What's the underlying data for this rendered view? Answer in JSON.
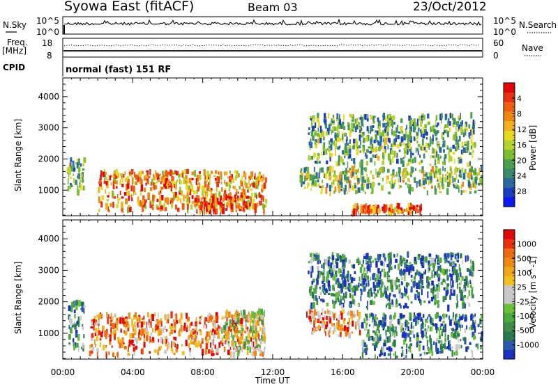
{
  "header": {
    "title": "Syowa East (fitACF)",
    "beam": "Beam 03",
    "date": "23/Oct/2012"
  },
  "noise_panel": {
    "left_label": "N.Sky",
    "right_label": "N.Search",
    "tick_top": "10^5",
    "tick_bottom": "10^0"
  },
  "freq_panel": {
    "left_label_1": "Freq.",
    "left_label_2": "[MHz]",
    "tick_top": "18",
    "tick_bottom": "8",
    "right_label": "Nave",
    "right_tick_top": "60",
    "right_tick_bottom": "0"
  },
  "cpid": {
    "label": "CPID",
    "value": "normal (fast) 151 RF"
  },
  "chart_data": [
    {
      "type": "heatmap",
      "name": "power",
      "ylabel": "Slant Range [km]",
      "xlabel": "Time UT",
      "xlim": [
        "00:00",
        "24:00"
      ],
      "ylim": [
        180,
        4600
      ],
      "x_ticks": [
        "00:00",
        "04:00",
        "08:00",
        "12:00",
        "16:00",
        "20:00",
        "00:00"
      ],
      "y_ticks": [
        1000,
        2000,
        3000,
        4000
      ],
      "colorbar": {
        "label": "Power [dB]",
        "ticks": [
          "4",
          "8",
          "12",
          "16",
          "20",
          "24",
          "28"
        ],
        "colors": [
          "#0a1af0",
          "#1a40c0",
          "#2a6aa0",
          "#3a8a70",
          "#4ca04a",
          "#7bbf30",
          "#b4d230",
          "#e8d820",
          "#f2b020",
          "#f08818",
          "#ec5e10",
          "#e63010",
          "#e00808"
        ]
      },
      "regions": [
        {
          "t": [
            0.2,
            1.2
          ],
          "r": [
            900,
            2000
          ],
          "level": 0.4
        },
        {
          "t": [
            2.0,
            11.6
          ],
          "r": [
            300,
            1600
          ],
          "level": 0.7
        },
        {
          "t": [
            5.6,
            6.2
          ],
          "r": [
            1000,
            1400
          ],
          "level": 0.9
        },
        {
          "t": [
            7.5,
            10.5
          ],
          "r": [
            300,
            800
          ],
          "level": 0.85
        },
        {
          "t": [
            13.5,
            23.9
          ],
          "r": [
            900,
            1700
          ],
          "level": 0.45
        },
        {
          "t": [
            16.5,
            20.5
          ],
          "r": [
            250,
            500
          ],
          "level": 0.8
        },
        {
          "t": [
            14.0,
            23.5
          ],
          "r": [
            1800,
            3400
          ],
          "level": 0.35
        }
      ]
    },
    {
      "type": "heatmap",
      "name": "velocity",
      "ylabel": "Slant Range [km]",
      "xlabel": "Time UT",
      "xlim": [
        "00:00",
        "24:00"
      ],
      "ylim": [
        180,
        4600
      ],
      "x_ticks": [
        "00:00",
        "04:00",
        "08:00",
        "12:00",
        "16:00",
        "20:00",
        "00:00"
      ],
      "y_ticks": [
        1000,
        2000,
        3000,
        4000
      ],
      "colorbar": {
        "label": "Velocity [m s^-1]",
        "ticks": [
          "1000",
          "500",
          "100",
          "25",
          "-25",
          "-100",
          "-500",
          "-1000"
        ],
        "colors": [
          "#1a30c0",
          "#2a5ab0",
          "#2a7a50",
          "#3e8e4a",
          "#4caa40",
          "#6cc03a",
          "#c8c8c8",
          "#c8c8c8",
          "#f0c020",
          "#f0a818",
          "#f08818",
          "#ee6a10",
          "#e83010",
          "#e00808"
        ]
      },
      "regions": [
        {
          "t": [
            0.3,
            1.2
          ],
          "r": [
            500,
            2000
          ],
          "level": 0.25
        },
        {
          "t": [
            1.5,
            11.5
          ],
          "r": [
            300,
            1600
          ],
          "level": 0.75
        },
        {
          "t": [
            9.0,
            11.5
          ],
          "r": [
            300,
            1700
          ],
          "level": 0.5
        },
        {
          "t": [
            13.8,
            17.0
          ],
          "r": [
            900,
            1700
          ],
          "level": 0.75
        },
        {
          "t": [
            17.0,
            23.9
          ],
          "r": [
            250,
            1600
          ],
          "level": 0.2
        },
        {
          "t": [
            14.0,
            23.5
          ],
          "r": [
            1800,
            3500
          ],
          "level": 0.2
        }
      ]
    }
  ]
}
